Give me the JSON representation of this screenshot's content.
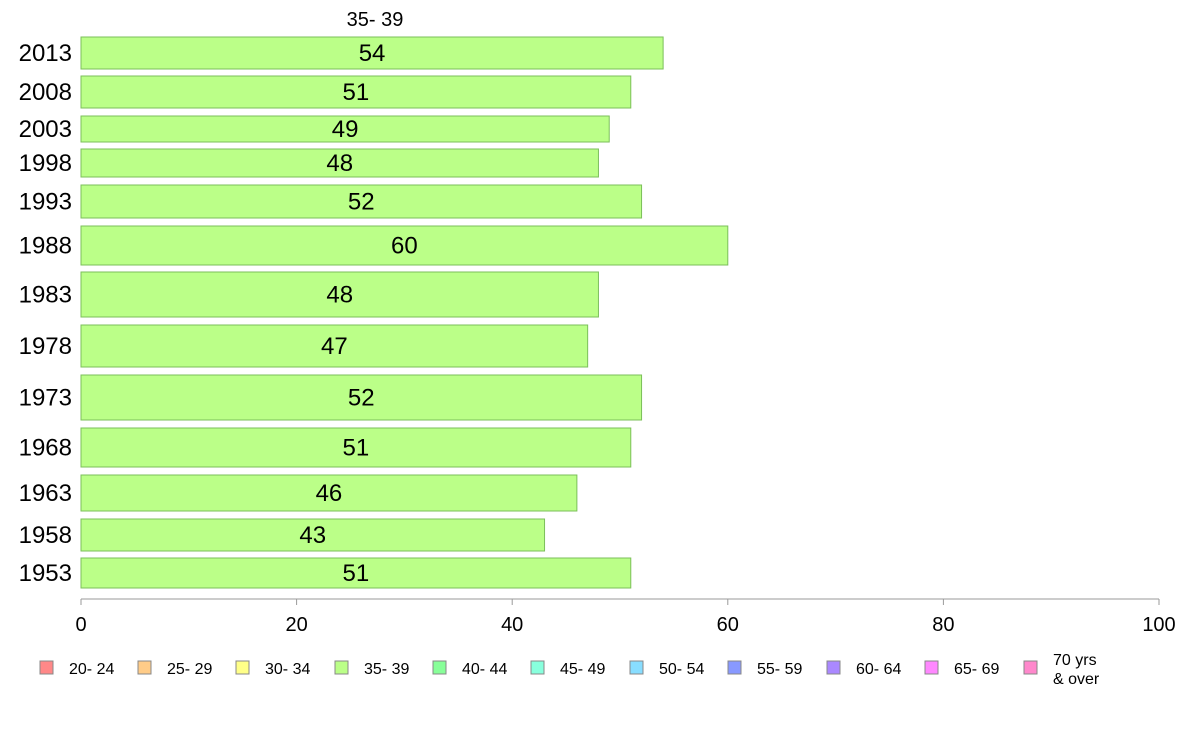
{
  "chart_data": {
    "type": "bar",
    "orientation": "horizontal",
    "panel_label": "35- 39",
    "categories": [
      "2013",
      "2008",
      "2003",
      "1998",
      "1993",
      "1988",
      "1983",
      "1978",
      "1973",
      "1968",
      "1963",
      "1958",
      "1953"
    ],
    "series": [
      {
        "name": "35- 39",
        "color": "#bbff88",
        "values": [
          54,
          51,
          49,
          48,
          52,
          60,
          48,
          47,
          52,
          51,
          46,
          43,
          51
        ]
      }
    ],
    "xlim": [
      0,
      100
    ],
    "xticks": [
      0,
      20,
      40,
      60,
      80,
      100
    ],
    "grid": false,
    "legend_position": "bottom",
    "legend": [
      {
        "label": "20- 24",
        "color": "#ff8888"
      },
      {
        "label": "25- 29",
        "color": "#ffcc88"
      },
      {
        "label": "30- 34",
        "color": "#ffff88"
      },
      {
        "label": "35- 39",
        "color": "#bbff88"
      },
      {
        "label": "40- 44",
        "color": "#88ff99"
      },
      {
        "label": "45- 49",
        "color": "#88ffdd"
      },
      {
        "label": "50- 54",
        "color": "#88ddff"
      },
      {
        "label": "55- 59",
        "color": "#8899ff"
      },
      {
        "label": "60- 64",
        "color": "#aa88ff"
      },
      {
        "label": "65- 69",
        "color": "#ff88ff"
      },
      {
        "label": "70 yrs\n& over",
        "color": "#ff88cc"
      }
    ]
  }
}
